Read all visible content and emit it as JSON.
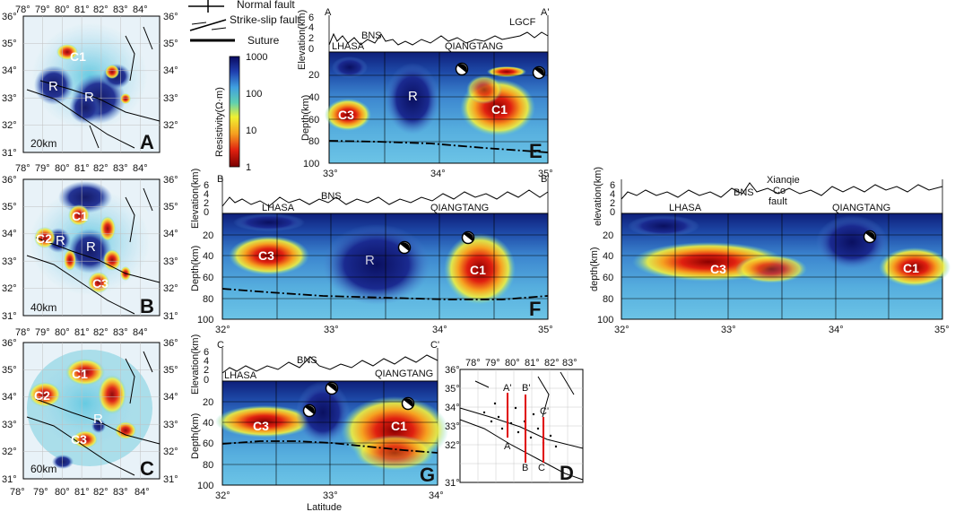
{
  "legend": {
    "normal_fault": "Normal fault",
    "strike_slip_fault": "Strike-slip fault",
    "suture": "Suture"
  },
  "colorbar": {
    "title": "Resistivity(Ω·m)",
    "ticks": [
      "1000",
      "100",
      "10",
      "1"
    ]
  },
  "maps": {
    "lon_ticks": [
      "78°",
      "79°",
      "80°",
      "81°",
      "82°",
      "83°",
      "84°"
    ],
    "lat_ticks": [
      "36°",
      "35°",
      "34°",
      "33°",
      "32°",
      "31°"
    ],
    "A": {
      "panel": "A",
      "depth": "20km",
      "labels": [
        "C1",
        "R",
        "R"
      ]
    },
    "B": {
      "panel": "B",
      "depth": "40km",
      "labels": [
        "C1",
        "C2",
        "R",
        "R",
        "C3"
      ]
    },
    "C": {
      "panel": "C",
      "depth": "60km",
      "labels": [
        "C1",
        "C2",
        "R",
        "C3"
      ]
    }
  },
  "inset": {
    "panel": "D",
    "lon_ticks": [
      "78°",
      "79°",
      "80°",
      "81°",
      "82°",
      "83°"
    ],
    "lat_ticks": [
      "36°",
      "35°",
      "34°",
      "33°",
      "32°",
      "31°"
    ],
    "profiles": [
      {
        "start": "A'",
        "end": "A"
      },
      {
        "start": "B'",
        "end": "B"
      },
      {
        "start": "C'",
        "end": "C"
      }
    ]
  },
  "sections": {
    "E": {
      "panel": "E",
      "start": "A",
      "end": "A'",
      "elev_label": "Elevation(km)",
      "depth_label": "Depth(km)",
      "elev_ticks": [
        "6",
        "4",
        "2",
        "0"
      ],
      "depth_ticks": [
        "20",
        "40",
        "60",
        "80",
        "100"
      ],
      "x_ticks": [
        "33°",
        "34°",
        "35°"
      ],
      "terranes": [
        "LHASA",
        "QIANGTANG"
      ],
      "boundaries": [
        "BNS",
        "LGCF"
      ],
      "anomalies": [
        "C3",
        "R",
        "C1"
      ]
    },
    "F": {
      "panel": "F",
      "start": "B",
      "end": "B'",
      "elev_label": "Elevation(km)",
      "depth_label": "Depth(km)",
      "elev_ticks": [
        "6",
        "4",
        "2",
        "0"
      ],
      "depth_ticks": [
        "20",
        "40",
        "60",
        "80",
        "100"
      ],
      "x_ticks": [
        "32°",
        "33°",
        "34°",
        "35°"
      ],
      "terranes": [
        "LHASA",
        "QIANGTANG"
      ],
      "boundaries": [
        "BNS"
      ],
      "anomalies": [
        "C3",
        "R",
        "C1"
      ]
    },
    "G": {
      "panel": "G",
      "start": "C",
      "end": "C'",
      "elev_label": "Elevation(km)",
      "depth_label": "Depth(km)",
      "elev_ticks": [
        "6",
        "4",
        "2",
        "0"
      ],
      "depth_ticks": [
        "20",
        "40",
        "60",
        "80",
        "100"
      ],
      "x_ticks": [
        "32°",
        "33°",
        "34°"
      ],
      "x_label": "Latitude",
      "terranes": [
        "LHASA",
        "QIANGTANG"
      ],
      "boundaries": [
        "BNS"
      ],
      "anomalies": [
        "C3",
        "C1"
      ]
    },
    "H": {
      "elev_label": "elevation(km)",
      "depth_label": "depth(km)",
      "elev_ticks": [
        "6",
        "4",
        "2",
        "0"
      ],
      "depth_ticks": [
        "20",
        "40",
        "60",
        "80",
        "100"
      ],
      "x_ticks": [
        "32°",
        "33°",
        "34°",
        "35°"
      ],
      "terranes": [
        "LHASA",
        "QIANGTANG"
      ],
      "boundaries": [
        "BNS",
        "Xianqie",
        "Co",
        "fault"
      ],
      "anomalies": [
        "C3",
        "C1"
      ]
    }
  }
}
